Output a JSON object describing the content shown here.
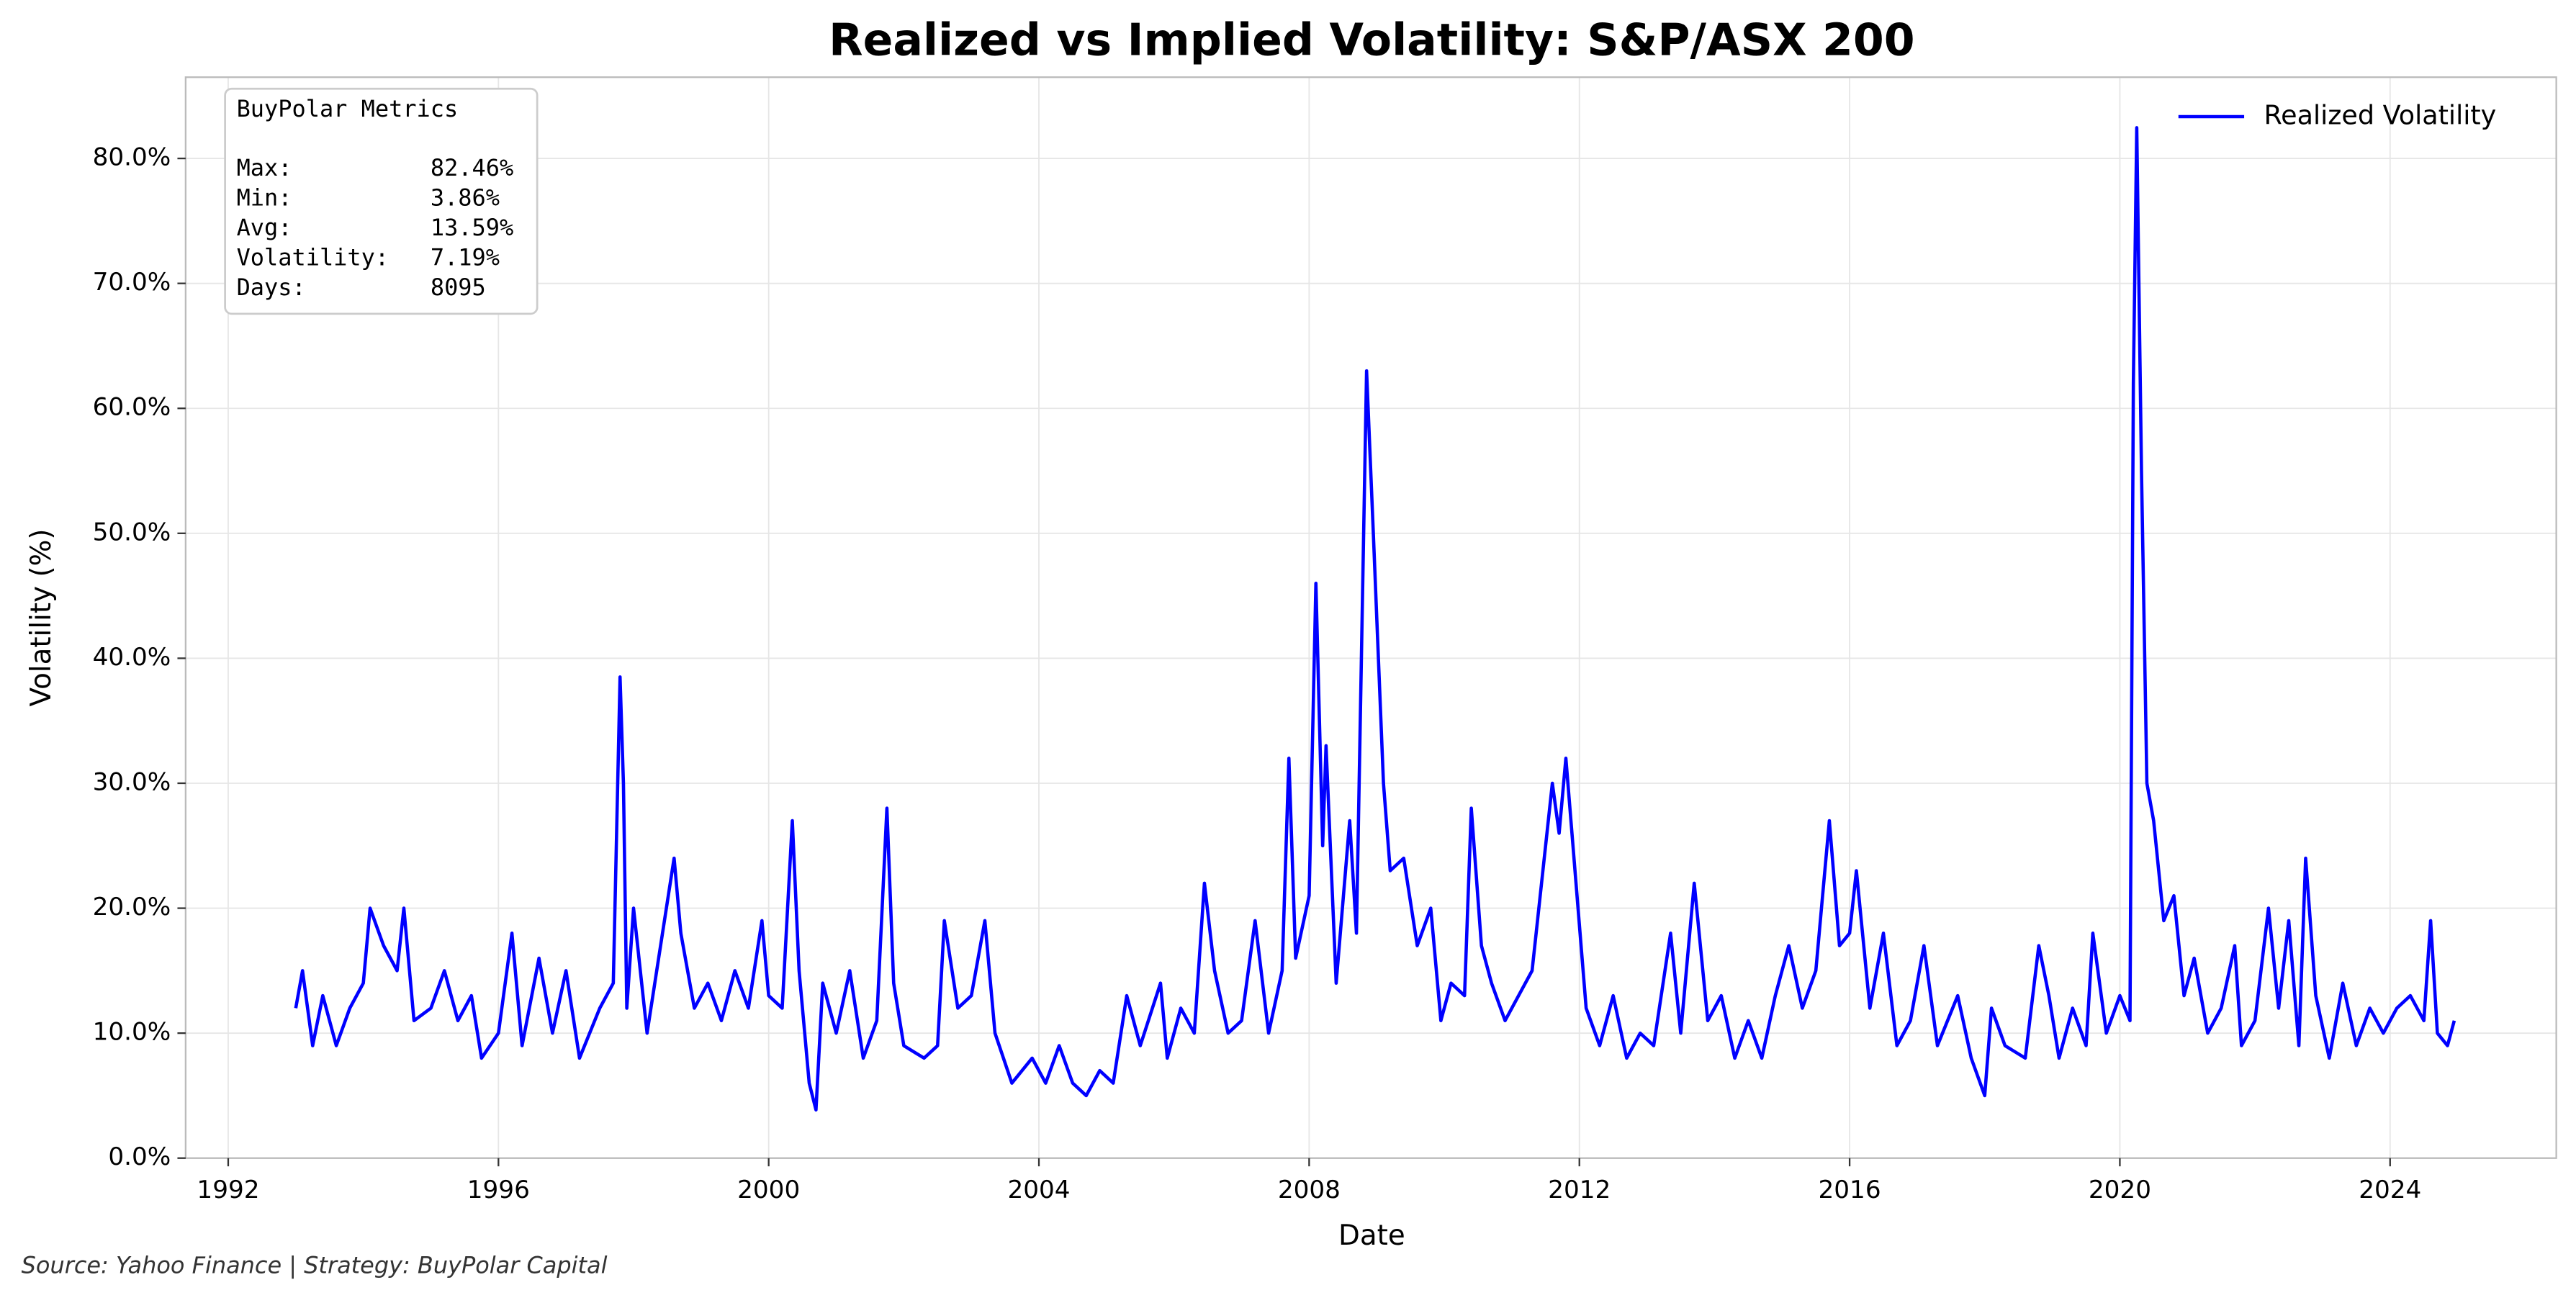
{
  "chart_data": {
    "type": "line",
    "title": "Realized vs Implied Volatility: S&P/ASX 200",
    "x_label": "Date",
    "y_label": "Volatility (%)",
    "x": [
      1993.0,
      1993.1,
      1993.25,
      1993.4,
      1993.6,
      1993.8,
      1994.0,
      1994.1,
      1994.3,
      1994.5,
      1994.6,
      1994.75,
      1995.0,
      1995.2,
      1995.4,
      1995.6,
      1995.75,
      1996.0,
      1996.2,
      1996.35,
      1996.6,
      1996.8,
      1997.0,
      1997.2,
      1997.5,
      1997.7,
      1997.8,
      1997.85,
      1997.9,
      1998.0,
      1998.2,
      1998.4,
      1998.6,
      1998.7,
      1998.9,
      1999.1,
      1999.3,
      1999.5,
      1999.7,
      1999.9,
      2000.0,
      2000.2,
      2000.35,
      2000.45,
      2000.6,
      2000.7,
      2000.8,
      2001.0,
      2001.2,
      2001.4,
      2001.6,
      2001.75,
      2001.85,
      2002.0,
      2002.3,
      2002.5,
      2002.6,
      2002.8,
      2003.0,
      2003.2,
      2003.35,
      2003.6,
      2003.9,
      2004.1,
      2004.3,
      2004.5,
      2004.7,
      2004.9,
      2005.1,
      2005.3,
      2005.5,
      2005.8,
      2005.9,
      2006.1,
      2006.3,
      2006.45,
      2006.6,
      2006.8,
      2007.0,
      2007.2,
      2007.4,
      2007.6,
      2007.7,
      2007.8,
      2008.0,
      2008.1,
      2008.2,
      2008.25,
      2008.4,
      2008.6,
      2008.7,
      2008.85,
      2008.95,
      2009.1,
      2009.2,
      2009.4,
      2009.6,
      2009.8,
      2009.95,
      2010.1,
      2010.3,
      2010.4,
      2010.55,
      2010.7,
      2010.9,
      2011.1,
      2011.3,
      2011.6,
      2011.7,
      2011.8,
      2011.95,
      2012.1,
      2012.3,
      2012.5,
      2012.7,
      2012.9,
      2013.1,
      2013.35,
      2013.5,
      2013.7,
      2013.9,
      2014.1,
      2014.3,
      2014.5,
      2014.7,
      2014.9,
      2015.1,
      2015.3,
      2015.5,
      2015.7,
      2015.85,
      2016.0,
      2016.1,
      2016.3,
      2016.5,
      2016.7,
      2016.9,
      2017.1,
      2017.3,
      2017.6,
      2017.8,
      2018.0,
      2018.1,
      2018.3,
      2018.6,
      2018.8,
      2018.95,
      2019.1,
      2019.3,
      2019.5,
      2019.6,
      2019.8,
      2020.0,
      2020.15,
      2020.2,
      2020.25,
      2020.32,
      2020.4,
      2020.5,
      2020.65,
      2020.8,
      2020.95,
      2021.1,
      2021.3,
      2021.5,
      2021.7,
      2021.8,
      2022.0,
      2022.2,
      2022.35,
      2022.5,
      2022.65,
      2022.75,
      2022.9,
      2023.1,
      2023.3,
      2023.5,
      2023.7,
      2023.9,
      2024.1,
      2024.3,
      2024.5,
      2024.6,
      2024.7,
      2024.85,
      2024.95
    ],
    "series": [
      {
        "name": "Realized Volatility",
        "color": "#0000ff",
        "values": [
          12,
          15,
          9,
          13,
          9,
          12,
          14,
          20,
          17,
          15,
          20,
          11,
          12,
          15,
          11,
          13,
          8,
          10,
          18,
          9,
          16,
          10,
          15,
          8,
          12,
          14,
          38.5,
          30,
          12,
          20,
          10,
          17,
          24,
          18,
          12,
          14,
          11,
          15,
          12,
          19,
          13,
          12,
          27,
          15,
          6,
          3.86,
          14,
          10,
          15,
          8,
          11,
          28,
          14,
          9,
          8,
          9,
          19,
          12,
          13,
          19,
          10,
          6,
          8,
          6,
          9,
          6,
          5,
          7,
          6,
          13,
          9,
          14,
          8,
          12,
          10,
          22,
          15,
          10,
          11,
          19,
          10,
          15,
          32,
          16,
          21,
          46,
          25,
          33,
          14,
          27,
          18,
          63,
          50,
          30,
          23,
          24,
          17,
          20,
          11,
          14,
          13,
          28,
          17,
          14,
          11,
          13,
          15,
          30,
          26,
          32,
          22,
          12,
          9,
          13,
          8,
          10,
          9,
          18,
          10,
          22,
          11,
          13,
          8,
          11,
          8,
          13,
          17,
          12,
          15,
          27,
          17,
          18,
          23,
          12,
          18,
          9,
          11,
          17,
          9,
          13,
          8,
          5,
          12,
          9,
          8,
          17,
          13,
          8,
          12,
          9,
          18,
          10,
          13,
          11,
          62,
          82.46,
          55,
          30,
          27,
          19,
          21,
          13,
          16,
          10,
          12,
          17,
          9,
          11,
          20,
          12,
          19,
          9,
          24,
          13,
          8,
          14,
          9,
          12,
          10,
          12,
          13,
          11,
          19,
          10,
          9,
          11
        ]
      }
    ],
    "xlim": [
      1991.37,
      2026.46
    ],
    "xticks": [
      1992,
      1996,
      2000,
      2004,
      2008,
      2012,
      2016,
      2020,
      2024
    ],
    "ylim": [
      0,
      86.5
    ],
    "yticks": [
      {
        "value": 0,
        "label": "0.0%"
      },
      {
        "value": 10,
        "label": "10.0%"
      },
      {
        "value": 20,
        "label": "20.0%"
      },
      {
        "value": 30,
        "label": "30.0%"
      },
      {
        "value": 40,
        "label": "40.0%"
      },
      {
        "value": 50,
        "label": "50.0%"
      },
      {
        "value": 60,
        "label": "60.0%"
      },
      {
        "value": 70,
        "label": "70.0%"
      },
      {
        "value": 80,
        "label": "80.0%"
      }
    ],
    "grid": true,
    "legend_position": "upper right",
    "stats_box": {
      "title": "BuyPolar Metrics",
      "rows": [
        {
          "label": "Max:",
          "value": "82.46%"
        },
        {
          "label": "Min:",
          "value": "3.86%"
        },
        {
          "label": "Avg:",
          "value": "13.59%"
        },
        {
          "label": "Volatility:",
          "value": "7.19%"
        },
        {
          "label": "Days:",
          "value": "8095"
        }
      ]
    },
    "source": "Source: Yahoo Finance | Strategy: BuyPolar Capital"
  }
}
